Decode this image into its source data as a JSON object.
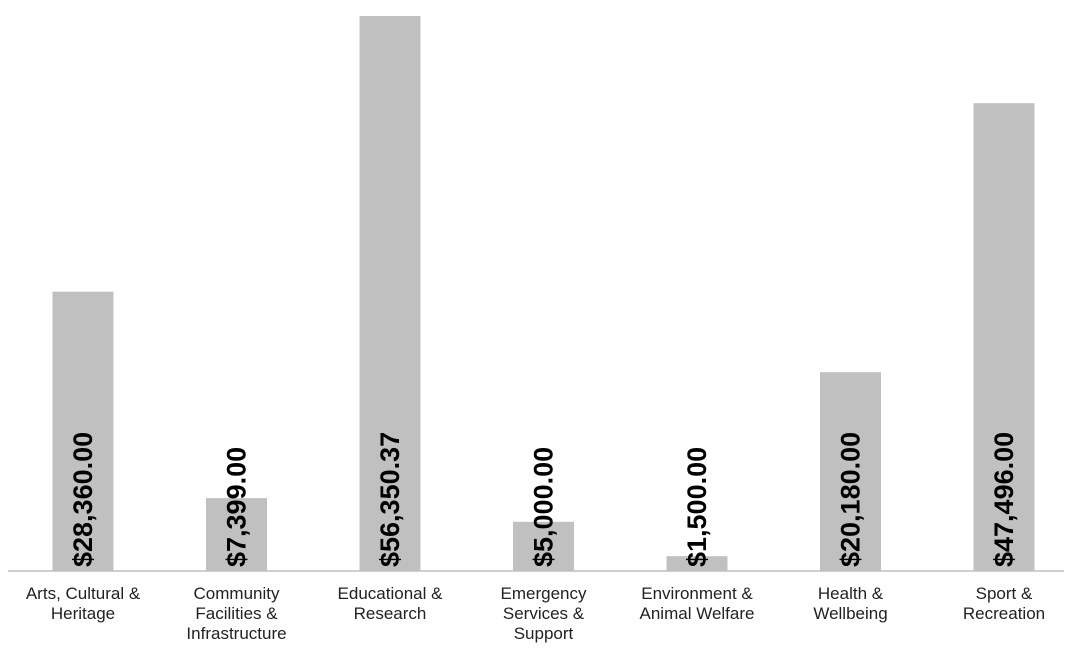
{
  "chart_data": {
    "type": "bar",
    "categories": [
      [
        "Arts, Cultural &",
        "Heritage"
      ],
      [
        "Community",
        "Facilities &",
        "Infrastructure"
      ],
      [
        "Educational &",
        "Research"
      ],
      [
        "Emergency",
        "Services &",
        "Support"
      ],
      [
        "Environment &",
        "Animal Welfare"
      ],
      [
        "Health &",
        "Wellbeing"
      ],
      [
        "Sport &",
        "Recreation"
      ]
    ],
    "values": [
      28360.0,
      7399.0,
      56350.37,
      5000.0,
      1500.0,
      20180.0,
      47496.0
    ],
    "data_labels": [
      "$28,360.00",
      "$7,399.00",
      "$56,350.37",
      "$5,000.00",
      "$1,500.00",
      "$20,180.00",
      "$47,496.00"
    ],
    "ylim": [
      0,
      56350.37
    ],
    "grid": false,
    "legend": "none",
    "bar_color": "#c0c0c0",
    "label_color": "#000000"
  }
}
